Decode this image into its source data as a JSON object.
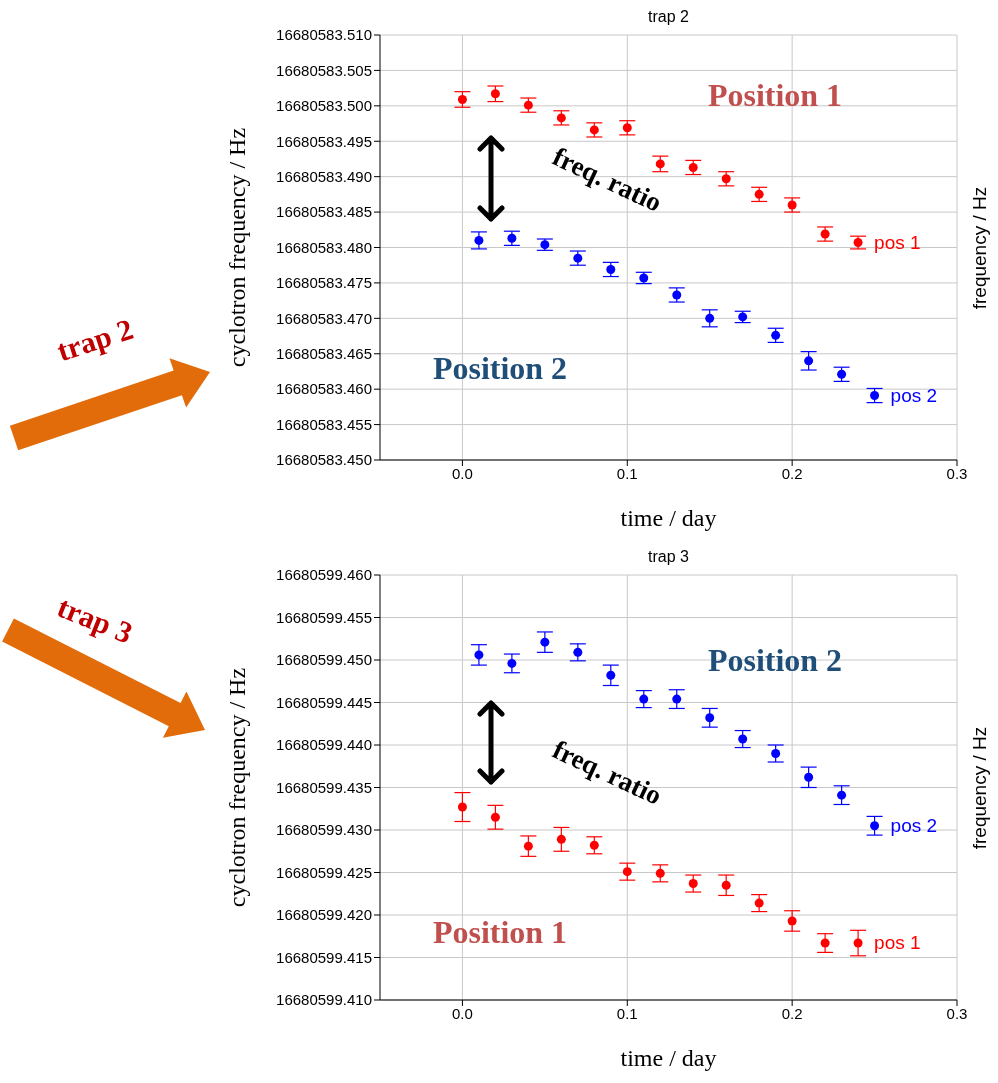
{
  "chart_data": [
    {
      "type": "scatter",
      "title": "trap 2",
      "xlabel": "time / day",
      "ylabel": "cyclotron frequency / Hz",
      "y2label": "frequency / Hz",
      "annotations": [
        "Position 1",
        "freq. ratio",
        "Position 2",
        "trap 2"
      ],
      "xlim": [
        -0.05,
        0.3
      ],
      "xticks": [
        {
          "value": 0,
          "label": "0.0"
        },
        0.1,
        0.2,
        0.3
      ],
      "ylim": [
        16680583.45,
        16680583.51
      ],
      "yticks": [
        {
          "value": 16680583.45,
          "label": "16680583.450"
        },
        {
          "value": 16680583.455,
          "label": "16680583.455"
        },
        {
          "value": 16680583.46,
          "label": "16680583.460"
        },
        {
          "value": 16680583.465,
          "label": "16680583.465"
        },
        {
          "value": 16680583.47,
          "label": "16680583.470"
        },
        {
          "value": 16680583.475,
          "label": "16680583.475"
        },
        {
          "value": 16680583.48,
          "label": "16680583.480"
        },
        {
          "value": 16680583.485,
          "label": "16680583.485"
        },
        {
          "value": 16680583.49,
          "label": "16680583.490"
        },
        {
          "value": 16680583.495,
          "label": "16680583.495"
        },
        {
          "value": 16680583.5,
          "label": "16680583.500"
        },
        {
          "value": 16680583.505,
          "label": "16680583.505"
        },
        {
          "value": 16680583.51,
          "label": "16680583.510"
        }
      ],
      "grid": true,
      "legend": false,
      "marker": "circle",
      "series": [
        {
          "name": "pos 1",
          "color": "#ff0000",
          "x": [
            0,
            0.02,
            0.04,
            0.06,
            0.08,
            0.1,
            0.12,
            0.14,
            0.16,
            0.18,
            0.2,
            0.22,
            0.24
          ],
          "values": [
            16680583.5009,
            16680583.5017,
            16680583.5001,
            16680583.4983,
            16680583.4966,
            16680583.4969,
            16680583.4918,
            16680583.4913,
            16680583.4897,
            16680583.4875,
            16680583.486,
            16680583.4819,
            16680583.4807
          ],
          "errors": [
            0.0011,
            0.0011,
            0.001,
            0.001,
            0.001,
            0.001,
            0.0011,
            0.001,
            0.001,
            0.001,
            0.001,
            0.001,
            0.0009
          ]
        },
        {
          "name": "pos 2",
          "color": "#0000ff",
          "x": [
            0.01,
            0.03,
            0.05,
            0.07,
            0.09,
            0.11,
            0.13,
            0.15,
            0.17,
            0.19,
            0.21,
            0.23,
            0.25
          ],
          "values": [
            16680583.481,
            16680583.4813,
            16680583.4804,
            16680583.4785,
            16680583.4769,
            16680583.4757,
            16680583.4733,
            16680583.47,
            16680583.4702,
            16680583.4676,
            16680583.464,
            16680583.4621,
            16680583.4591
          ],
          "errors": [
            0.0012,
            0.001,
            0.0008,
            0.001,
            0.001,
            0.0008,
            0.001,
            0.0012,
            0.0008,
            0.001,
            0.0013,
            0.001,
            0.001
          ]
        }
      ]
    },
    {
      "type": "scatter",
      "title": "trap 3",
      "xlabel": "time / day",
      "ylabel": "cyclotron frequency / Hz",
      "y2label": "frequency / Hz",
      "annotations": [
        "Position 2",
        "freq. ratio",
        "Position 1",
        "trap 3"
      ],
      "xlim": [
        -0.05,
        0.3
      ],
      "xticks": [
        {
          "value": 0,
          "label": "0.0"
        },
        0.1,
        0.2,
        0.3
      ],
      "ylim": [
        16680599.41,
        16680599.46
      ],
      "yticks": [
        {
          "value": 16680599.41,
          "label": "16680599.410"
        },
        {
          "value": 16680599.415,
          "label": "16680599.415"
        },
        {
          "value": 16680599.42,
          "label": "16680599.420"
        },
        {
          "value": 16680599.425,
          "label": "16680599.425"
        },
        {
          "value": 16680599.43,
          "label": "16680599.430"
        },
        {
          "value": 16680599.435,
          "label": "16680599.435"
        },
        {
          "value": 16680599.44,
          "label": "16680599.440"
        },
        {
          "value": 16680599.445,
          "label": "16680599.445"
        },
        {
          "value": 16680599.45,
          "label": "16680599.450"
        },
        {
          "value": 16680599.455,
          "label": "16680599.455"
        },
        {
          "value": 16680599.46,
          "label": "16680599.460"
        }
      ],
      "grid": true,
      "legend": false,
      "marker": "circle",
      "series": [
        {
          "name": "pos 2",
          "color": "#0000ff",
          "x": [
            0.01,
            0.03,
            0.05,
            0.07,
            0.09,
            0.11,
            0.13,
            0.15,
            0.17,
            0.19,
            0.21,
            0.23,
            0.25
          ],
          "values": [
            16680599.4506,
            16680599.4496,
            16680599.4521,
            16680599.4509,
            16680599.4482,
            16680599.4454,
            16680599.4454,
            16680599.4432,
            16680599.4407,
            16680599.439,
            16680599.4362,
            16680599.4341,
            16680599.4305
          ],
          "errors": [
            0.0012,
            0.0011,
            0.0012,
            0.001,
            0.0012,
            0.001,
            0.0011,
            0.0011,
            0.001,
            0.001,
            0.0012,
            0.0011,
            0.0011
          ]
        },
        {
          "name": "pos 1",
          "color": "#ff0000",
          "x": [
            0,
            0.02,
            0.04,
            0.06,
            0.08,
            0.1,
            0.12,
            0.14,
            0.16,
            0.18,
            0.2,
            0.22,
            0.24
          ],
          "values": [
            16680599.4327,
            16680599.4315,
            16680599.4281,
            16680599.4289,
            16680599.4282,
            16680599.4251,
            16680599.4249,
            16680599.4237,
            16680599.4235,
            16680599.4214,
            16680599.4193,
            16680599.4167,
            16680599.4167
          ],
          "errors": [
            0.0017,
            0.0014,
            0.0012,
            0.0014,
            0.001,
            0.001,
            0.001,
            0.001,
            0.0012,
            0.001,
            0.0012,
            0.0011,
            0.0015
          ]
        }
      ]
    }
  ]
}
